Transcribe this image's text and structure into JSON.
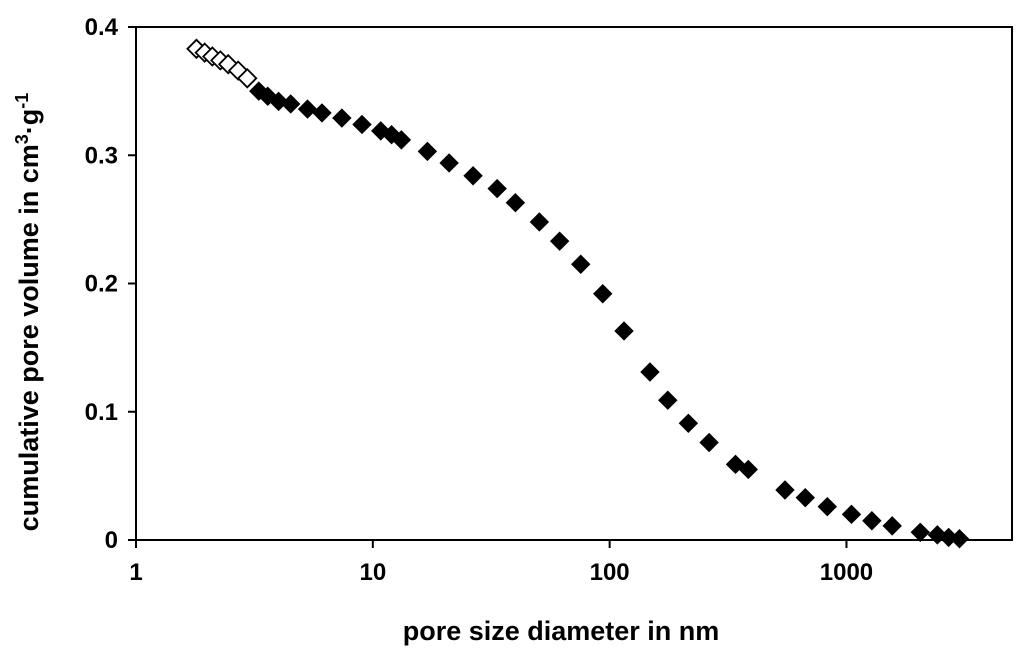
{
  "chart_data": {
    "type": "scatter",
    "xscale": "log",
    "xlim": [
      1,
      5000
    ],
    "ylim": [
      0,
      0.4
    ],
    "x_ticks": [
      1,
      10,
      100,
      1000
    ],
    "x_tick_labels": [
      "1",
      "10",
      "100",
      "1000"
    ],
    "y_ticks": [
      0,
      0.1,
      0.2,
      0.3,
      0.4
    ],
    "y_tick_labels": [
      "0",
      "0.1",
      "0.2",
      "0.3",
      "0.4"
    ],
    "xlabel": "pore size diameter in nm",
    "ylabel": {
      "text": "cumulative pore volume in cm",
      "sup1": "3",
      "mid": "·g",
      "sup2": "-1"
    },
    "grid": false,
    "series": [
      {
        "marker": "diamond-open",
        "color": "#000000",
        "x": [
          1.8,
          1.95,
          2.1,
          2.27,
          2.45,
          2.7,
          2.95
        ],
        "y": [
          0.383,
          0.38,
          0.377,
          0.374,
          0.371,
          0.366,
          0.36
        ]
      },
      {
        "marker": "diamond-filled",
        "color": "#000000",
        "x": [
          3.3,
          3.6,
          4.0,
          4.5,
          5.3,
          6.1,
          7.4,
          9.0,
          10.8,
          12.0,
          13.2,
          17.0,
          21.0,
          26.5,
          33.5,
          40.0,
          50.5,
          61.5,
          75.5,
          93.5,
          115,
          148,
          176,
          215,
          263,
          340,
          385,
          550,
          670,
          830,
          1050,
          1280,
          1560,
          2050,
          2420,
          2700,
          3000
        ],
        "y": [
          0.35,
          0.346,
          0.342,
          0.34,
          0.336,
          0.333,
          0.329,
          0.324,
          0.319,
          0.316,
          0.312,
          0.303,
          0.294,
          0.284,
          0.274,
          0.263,
          0.248,
          0.233,
          0.215,
          0.192,
          0.163,
          0.131,
          0.109,
          0.091,
          0.076,
          0.059,
          0.055,
          0.039,
          0.033,
          0.026,
          0.02,
          0.015,
          0.011,
          0.006,
          0.004,
          0.002,
          0.001
        ]
      }
    ]
  }
}
